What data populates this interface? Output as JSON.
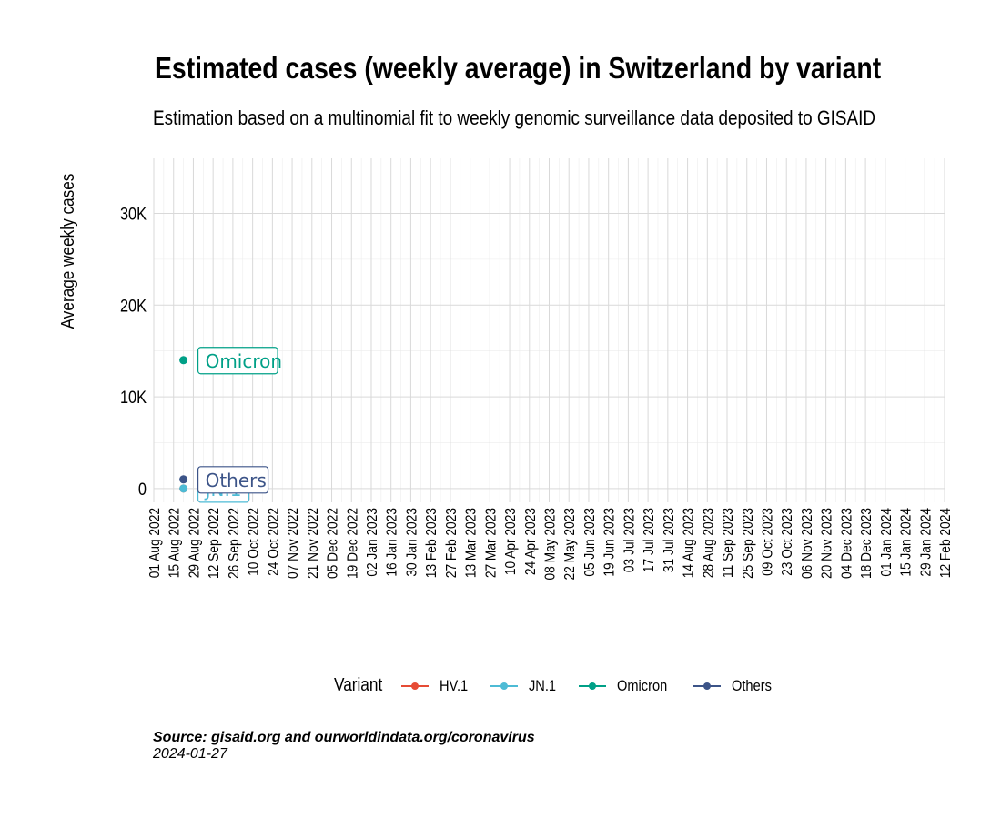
{
  "chart_data": {
    "type": "line",
    "title": "Estimated cases (weekly average) in Switzerland by variant",
    "subtitle": "Estimation based on a multinomial fit to weekly genomic surveillance data deposited to GISAID",
    "xlabel": "",
    "ylabel": "Average weekly cases",
    "x_ticks": [
      "01 Aug 2022",
      "15 Aug 2022",
      "29 Aug 2022",
      "12 Sep 2022",
      "26 Sep 2022",
      "10 Oct 2022",
      "24 Oct 2022",
      "07 Nov 2022",
      "21 Nov 2022",
      "05 Dec 2022",
      "19 Dec 2022",
      "02 Jan 2023",
      "16 Jan 2023",
      "30 Jan 2023",
      "13 Feb 2023",
      "27 Feb 2023",
      "13 Mar 2023",
      "27 Mar 2023",
      "10 Apr 2023",
      "24 Apr 2023",
      "08 May 2023",
      "22 May 2023",
      "05 Jun 2023",
      "19 Jun 2023",
      "03 Jul 2023",
      "17 Jul 2023",
      "31 Jul 2023",
      "14 Aug 2023",
      "28 Aug 2023",
      "11 Sep 2023",
      "25 Sep 2023",
      "09 Oct 2023",
      "23 Oct 2023",
      "06 Nov 2023",
      "20 Nov 2023",
      "04 Dec 2023",
      "18 Dec 2023",
      "01 Jan 2024",
      "15 Jan 2024",
      "29 Jan 2024",
      "12 Feb 2024"
    ],
    "y_ticks": [
      0,
      10000,
      20000,
      30000
    ],
    "y_tick_labels": [
      "0",
      "10K",
      "20K",
      "30K"
    ],
    "ylim": [
      -1500,
      36000
    ],
    "grid": true,
    "legend_title": "Variant",
    "legend_position": "bottom",
    "series": [
      {
        "name": "HV.1",
        "color": "#E64B35",
        "date": "2022-08-22",
        "value": 0
      },
      {
        "name": "JN.1",
        "color": "#4DBBD5",
        "date": "2022-08-22",
        "value": 0
      },
      {
        "name": "Omicron",
        "color": "#00A087",
        "date": "2022-08-22",
        "value": 14000
      },
      {
        "name": "Others",
        "color": "#3C5488",
        "date": "2022-08-22",
        "value": 1000
      }
    ]
  },
  "caption": {
    "source": "Source: gisaid.org and ourworldindata.org/coronavirus",
    "date": "2024-01-27"
  }
}
